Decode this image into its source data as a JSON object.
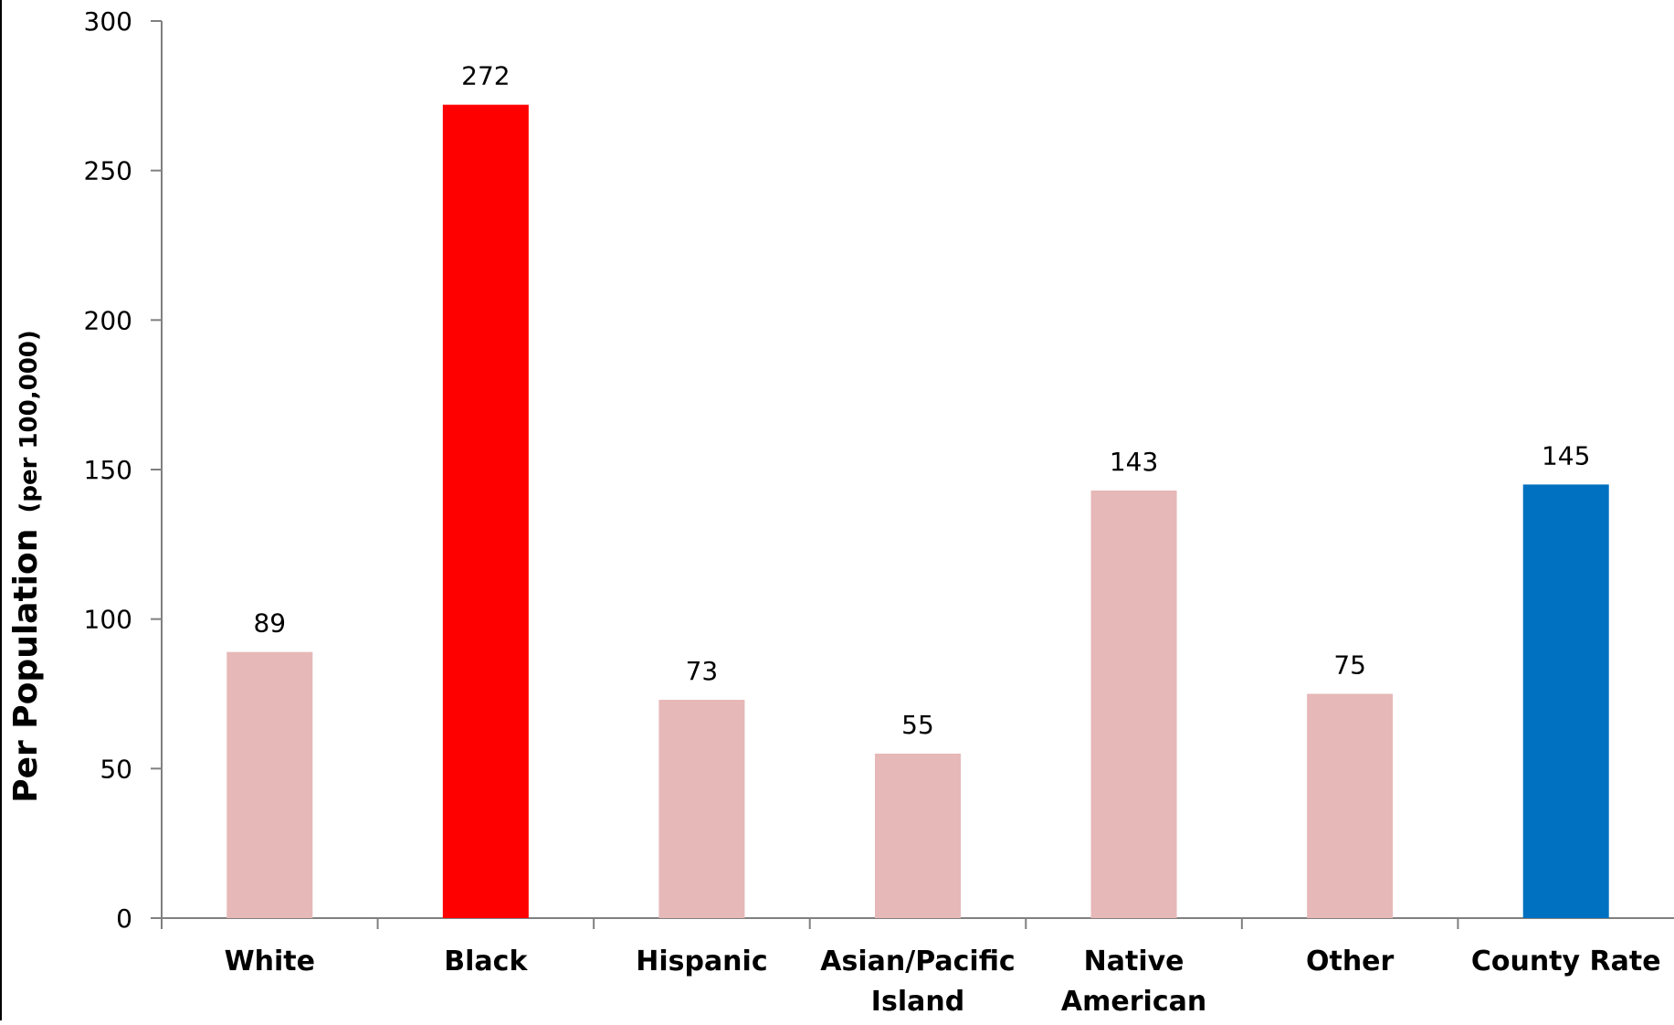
{
  "chart_data": {
    "type": "bar",
    "categories": [
      "White",
      "Black",
      "Hispanic",
      "Asian/Pacific Island",
      "Native American",
      "Other",
      "County Rate"
    ],
    "category_lines": [
      [
        "White"
      ],
      [
        "Black"
      ],
      [
        "Hispanic"
      ],
      [
        "Asian/Pacific",
        "Island"
      ],
      [
        "Native",
        "American"
      ],
      [
        "Other"
      ],
      [
        "County Rate"
      ]
    ],
    "values": [
      89,
      272,
      73,
      55,
      143,
      75,
      145
    ],
    "data_labels": [
      "89",
      "272",
      "73",
      "55",
      "143",
      "75",
      "145"
    ],
    "bar_colors": [
      "#e6b8b7",
      "#ff0000",
      "#e6b8b7",
      "#e6b8b7",
      "#e6b8b7",
      "#e6b8b7",
      "#0070c0"
    ],
    "ylabel": "Per Population",
    "ylabel_sub": "(per 100,000)",
    "xlabel": "",
    "title": "",
    "ylim": [
      0,
      300
    ],
    "yticks": [
      0,
      50,
      100,
      150,
      200,
      250,
      300
    ],
    "grid": false,
    "legend": "none"
  }
}
